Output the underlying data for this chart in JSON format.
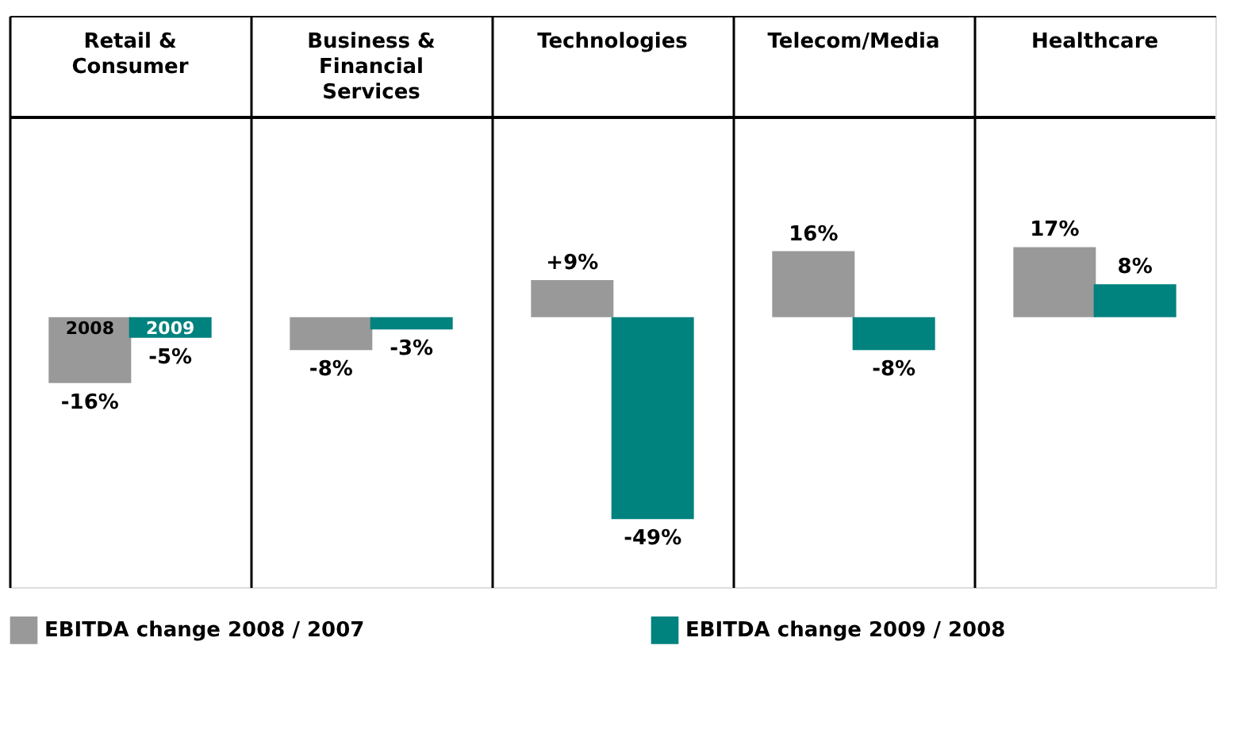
{
  "chart_data": {
    "type": "bar",
    "categories": [
      "Retail & Consumer",
      "Business & Financial Services",
      "Technologies",
      "Telecom/Media",
      "Healthcare"
    ],
    "series": [
      {
        "name": "EBITDA change 2008 / 2007",
        "color": "#999999",
        "values": [
          -16,
          -8,
          9,
          16,
          17
        ],
        "value_labels": [
          "-16%",
          "-8%",
          "+9%",
          "16%",
          "17%"
        ]
      },
      {
        "name": "EBITDA change 2009 / 2008",
        "color": "#00827f",
        "values": [
          -5,
          -3,
          -49,
          -8,
          8
        ],
        "value_labels": [
          "-5%",
          "-3%",
          "-49%",
          "-8%",
          "8%"
        ]
      }
    ],
    "annotations": [
      {
        "text": "2008",
        "x": "Retail & Consumer",
        "y": -3
      },
      {
        "text": "2009",
        "x": "Retail & Consumer",
        "y": -3
      }
    ],
    "legend": "bottom",
    "grid": "x"
  }
}
